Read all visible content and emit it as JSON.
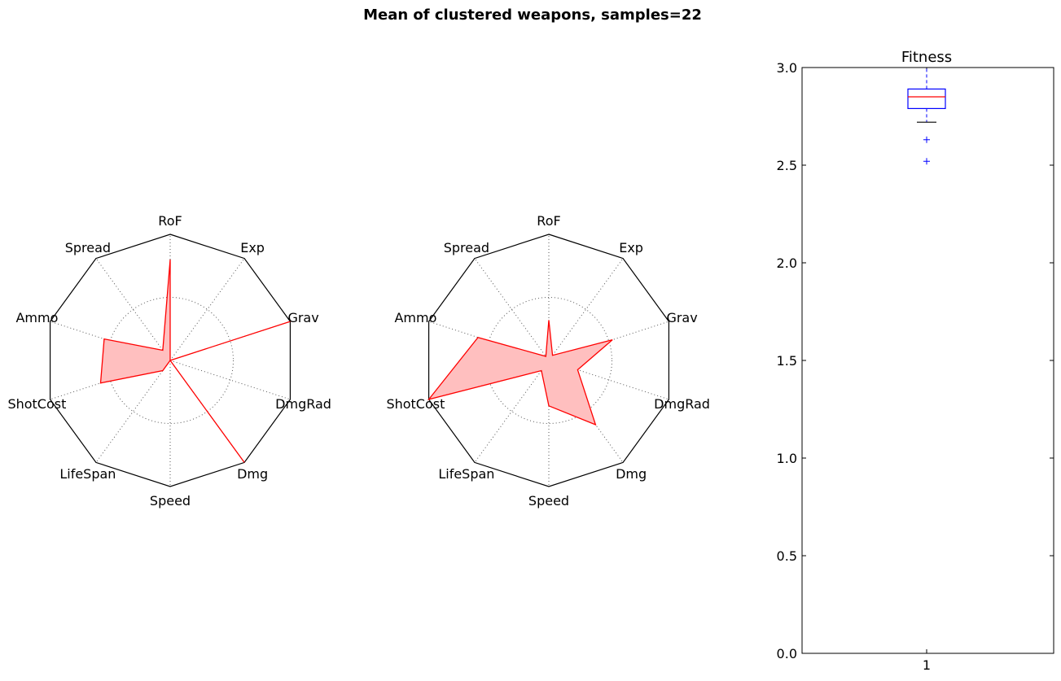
{
  "figure": {
    "suptitle": "Mean of clustered weapons, samples=22"
  },
  "chart_data": [
    {
      "type": "radar",
      "axes": [
        "RoF",
        "Exp",
        "Grav",
        "DmgRad",
        "Dmg",
        "Speed",
        "LifeSpan",
        "ShotCost",
        "Ammo",
        "Spread"
      ],
      "values": [
        0.8,
        0.0,
        1.0,
        0.0,
        1.0,
        0.0,
        0.1,
        0.58,
        0.55,
        0.1
      ],
      "range": [
        0,
        1
      ],
      "grid_levels": [
        0.5
      ],
      "colors": {
        "line": "#ff0000",
        "fill": "#ffbfbf",
        "frame": "#000000",
        "grid": "#555555"
      }
    },
    {
      "type": "radar",
      "axes": [
        "RoF",
        "Exp",
        "Grav",
        "DmgRad",
        "Dmg",
        "Speed",
        "LifeSpan",
        "ShotCost",
        "Ammo",
        "Spread"
      ],
      "values": [
        0.32,
        0.05,
        0.53,
        0.24,
        0.63,
        0.36,
        0.1,
        1.0,
        0.59,
        0.04
      ],
      "range": [
        0,
        1
      ],
      "grid_levels": [
        0.5
      ],
      "colors": {
        "line": "#ff0000",
        "fill": "#ffbfbf",
        "frame": "#000000",
        "grid": "#555555"
      }
    },
    {
      "type": "box",
      "title": "Fitness",
      "categories": [
        "1"
      ],
      "ylim": [
        0.0,
        3.0
      ],
      "yticks": [
        "0.0",
        "0.5",
        "1.0",
        "1.5",
        "2.0",
        "2.5",
        "3.0"
      ],
      "box": {
        "q1": 2.79,
        "median": 2.85,
        "q3": 2.89,
        "whisker_low": 2.72,
        "whisker_high": 3.0,
        "fliers": [
          2.63,
          2.52
        ]
      },
      "colors": {
        "box": "#0000ff",
        "median": "#ff0000",
        "whisker_low": "#000000",
        "flier": "#0000ff"
      }
    }
  ]
}
